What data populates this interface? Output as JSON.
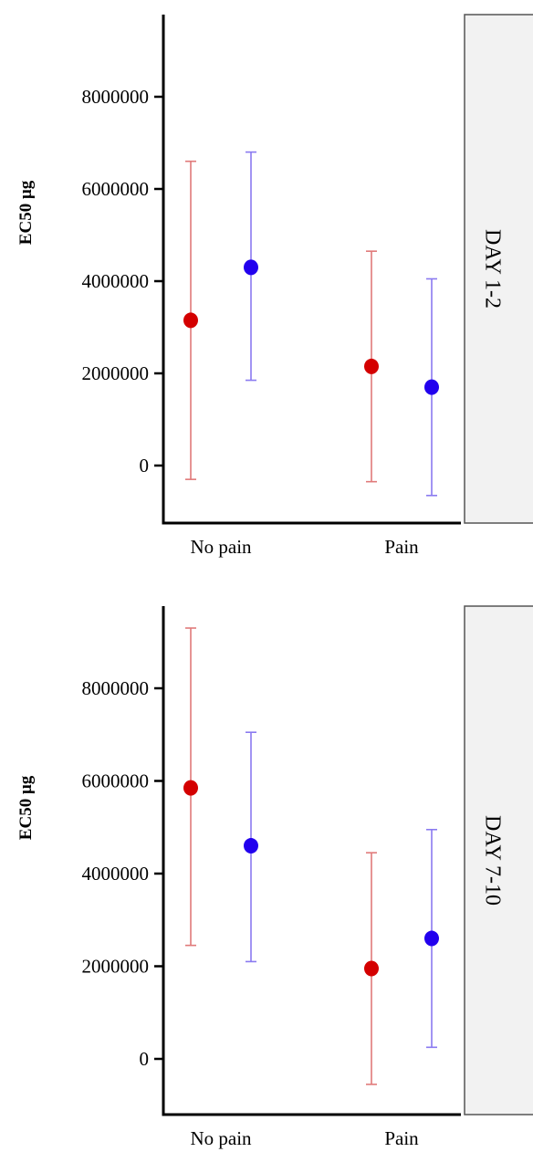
{
  "chart_data": [
    {
      "type": "scatter",
      "panel_label": "DAY 1-2",
      "ylabel": "EC50 μg",
      "categories": [
        "No pain",
        "Pain"
      ],
      "yticks": [
        0,
        2000000,
        4000000,
        6000000,
        8000000
      ],
      "ytick_labels": [
        "0",
        "2000000",
        "4000000",
        "6000000",
        "8000000"
      ],
      "ylim": [
        -1200000,
        9800000
      ],
      "series": [
        {
          "color": "#d40000",
          "error_color": "#e07a7a",
          "values": [
            3150000,
            2150000
          ],
          "lower": [
            -300000,
            -350000
          ],
          "upper": [
            6600000,
            4650000
          ]
        },
        {
          "color": "#2200ee",
          "error_color": "#8a7af0",
          "values": [
            4300000,
            1700000
          ],
          "lower": [
            1850000,
            -650000
          ],
          "upper": [
            6800000,
            4050000
          ]
        }
      ]
    },
    {
      "type": "scatter",
      "panel_label": "DAY 7-10",
      "ylabel": "EC50 μg",
      "categories": [
        "No pain",
        "Pain"
      ],
      "yticks": [
        0,
        2000000,
        4000000,
        6000000,
        8000000
      ],
      "ytick_labels": [
        "0",
        "2000000",
        "4000000",
        "6000000",
        "8000000"
      ],
      "ylim": [
        -1200000,
        9800000
      ],
      "series": [
        {
          "color": "#d40000",
          "error_color": "#e07a7a",
          "values": [
            5850000,
            1950000
          ],
          "lower": [
            2450000,
            -550000
          ],
          "upper": [
            9300000,
            4450000
          ]
        },
        {
          "color": "#2200ee",
          "error_color": "#8a7af0",
          "values": [
            4600000,
            2600000
          ],
          "lower": [
            2100000,
            250000
          ],
          "upper": [
            7050000,
            4950000
          ]
        }
      ]
    }
  ]
}
